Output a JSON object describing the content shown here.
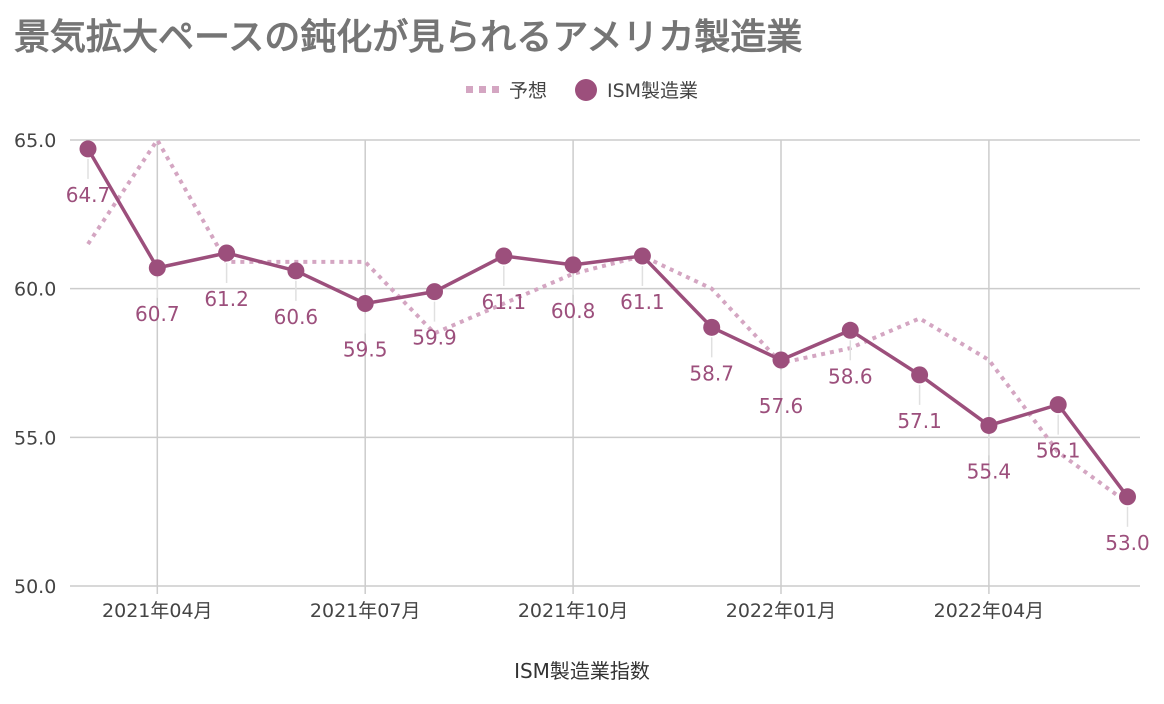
{
  "title": "景気拡大ペースの鈍化が見られるアメリカ製造業",
  "legend": {
    "forecast": "予想",
    "actual": "ISM製造業"
  },
  "colors": {
    "actual": "#9c4f7c",
    "forecast": "#d4a6c2",
    "grid": "#cccccc",
    "axis_text": "#444444"
  },
  "chart_data": {
    "type": "line",
    "title": "景気拡大ペースの鈍化が見られるアメリカ製造業",
    "xlabel": "ISM製造業指数",
    "ylabel": "",
    "ylim": [
      50,
      65
    ],
    "y_ticks": [
      "65.0",
      "60.0",
      "55.0",
      "50.0"
    ],
    "x_tick_labels": [
      "2021年04月",
      "2021年07月",
      "2021年10月",
      "2022年01月",
      "2022年04月"
    ],
    "categories": [
      "2021-03",
      "2021-04",
      "2021-05",
      "2021-06",
      "2021-07",
      "2021-08",
      "2021-09",
      "2021-10",
      "2021-11",
      "2021-12",
      "2022-01",
      "2022-02",
      "2022-03",
      "2022-04",
      "2022-05",
      "2022-06"
    ],
    "series": [
      {
        "name": "ISM製造業",
        "values": [
          64.7,
          60.7,
          61.2,
          60.6,
          59.5,
          59.9,
          61.1,
          60.8,
          61.1,
          58.7,
          57.6,
          58.6,
          57.1,
          55.4,
          56.1,
          53.0
        ],
        "labels": [
          "64.7",
          "60.7",
          "61.2",
          "60.6",
          "59.5",
          "59.9",
          "61.1",
          "60.8",
          "61.1",
          "58.7",
          "57.6",
          "58.6",
          "57.1",
          "55.4",
          "56.1",
          "53.0"
        ]
      },
      {
        "name": "予想",
        "values": [
          61.5,
          65.0,
          60.9,
          60.9,
          60.9,
          58.5,
          59.5,
          60.5,
          61.1,
          60.0,
          57.5,
          58.0,
          59.0,
          57.6,
          54.5,
          52.8
        ]
      }
    ],
    "grid": true,
    "legend_position": "top"
  }
}
